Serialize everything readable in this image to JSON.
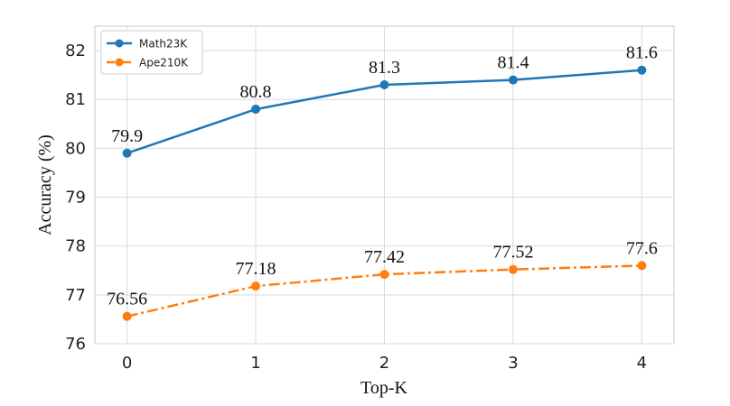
{
  "chart_data": {
    "type": "line",
    "title": "",
    "xlabel": "Top-K",
    "ylabel": "Accuracy (%)",
    "x": [
      0,
      1,
      2,
      3,
      4
    ],
    "xticks": [
      "0",
      "1",
      "2",
      "3",
      "4"
    ],
    "xlim": [
      -0.25,
      4.25
    ],
    "ylim": [
      76,
      82.5
    ],
    "yticks": [
      76,
      77,
      78,
      79,
      80,
      81,
      82
    ],
    "grid": true,
    "legend_position": "top-left",
    "series": [
      {
        "name": "Math23K",
        "values": [
          79.9,
          80.8,
          81.3,
          81.4,
          81.6
        ],
        "labels": [
          "79.9",
          "80.8",
          "81.3",
          "81.4",
          "81.6"
        ],
        "color": "#1f77b4",
        "line_style": "solid",
        "marker": "circle"
      },
      {
        "name": "Ape210K",
        "values": [
          76.56,
          77.18,
          77.42,
          77.52,
          77.6
        ],
        "labels": [
          "76.56",
          "77.18",
          "77.42",
          "77.52",
          "77.6"
        ],
        "color": "#ff7f0e",
        "line_style": "dash-dot",
        "marker": "circle"
      }
    ]
  }
}
